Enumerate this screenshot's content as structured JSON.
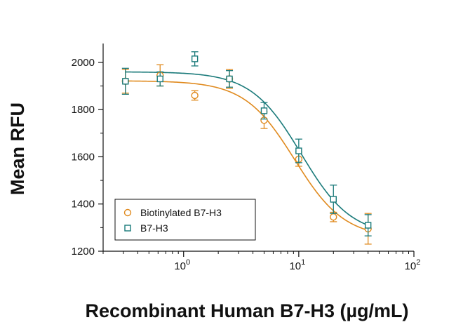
{
  "chart_data": {
    "type": "scatter",
    "title": "",
    "xlabel": "Recombinant Human B7-H3 (µg/mL)",
    "ylabel": "Mean RFU",
    "xscale": "log",
    "xlim": [
      0.2,
      100
    ],
    "ylim": [
      1200,
      2080
    ],
    "x_ticks": [
      {
        "value": 1,
        "base": "10",
        "exp": "0"
      },
      {
        "value": 10,
        "base": "10",
        "exp": "1"
      },
      {
        "value": 100,
        "base": "10",
        "exp": "2"
      }
    ],
    "y_ticks": [
      1200,
      1400,
      1600,
      1800,
      2000
    ],
    "grid": false,
    "legend_position": "bottom-left",
    "series": [
      {
        "name": "Biotinylated B7-H3",
        "color": "#E08A1E",
        "marker": "circle",
        "points": [
          {
            "x": 0.3125,
            "y": 1920,
            "err": 50
          },
          {
            "x": 0.625,
            "y": 1945,
            "err": 45
          },
          {
            "x": 1.25,
            "y": 1860,
            "err": 20
          },
          {
            "x": 2.5,
            "y": 1930,
            "err": 40
          },
          {
            "x": 5,
            "y": 1755,
            "err": 35
          },
          {
            "x": 10,
            "y": 1590,
            "err": 30
          },
          {
            "x": 20,
            "y": 1345,
            "err": 20
          },
          {
            "x": 40,
            "y": 1295,
            "err": 65
          }
        ],
        "fit": {
          "top": 1922,
          "bottom": 1255,
          "ec50": 9.2,
          "hill": 2.0
        }
      },
      {
        "name": "B7-H3",
        "color": "#1A7A7A",
        "marker": "square",
        "points": [
          {
            "x": 0.3125,
            "y": 1920,
            "err": 55
          },
          {
            "x": 0.625,
            "y": 1930,
            "err": 30
          },
          {
            "x": 1.25,
            "y": 2015,
            "err": 30
          },
          {
            "x": 2.5,
            "y": 1930,
            "err": 35
          },
          {
            "x": 5,
            "y": 1795,
            "err": 35
          },
          {
            "x": 10,
            "y": 1625,
            "err": 50
          },
          {
            "x": 20,
            "y": 1420,
            "err": 60
          },
          {
            "x": 40,
            "y": 1310,
            "err": 45
          }
        ],
        "fit": {
          "top": 1960,
          "bottom": 1265,
          "ec50": 10.5,
          "hill": 2.0
        }
      }
    ]
  }
}
